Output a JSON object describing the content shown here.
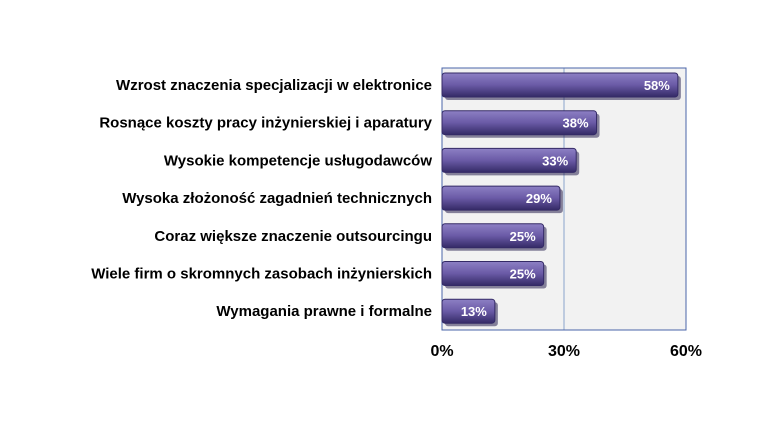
{
  "chart_data": {
    "type": "bar",
    "orientation": "horizontal",
    "categories": [
      "Wzrost znaczenia specjalizacji w elektronice",
      "Rosnące koszty pracy inżynierskiej i aparatury",
      "Wysokie kompetencje usługodawców",
      "Wysoka złożoność zagadnień technicznych",
      "Coraz większe znaczenie outsourcingu",
      "Wiele firm o skromnych zasobach inżynierskich",
      "Wymagania prawne i formalne"
    ],
    "values": [
      58,
      38,
      33,
      29,
      25,
      25,
      13
    ],
    "data_labels": [
      "58%",
      "38%",
      "33%",
      "29%",
      "25%",
      "25%",
      "13%"
    ],
    "xlim": [
      0,
      60
    ],
    "x_ticks": [
      0,
      30,
      60
    ],
    "x_tick_labels": [
      "0%",
      "30%",
      "60%"
    ],
    "grid": "vertical",
    "legend": "none",
    "colors": {
      "bar": "#6a5aa6",
      "bar_light": "#8d80c4",
      "bar_dark": "#342a66",
      "plot_bg": "#f2f2f2",
      "grid": "#8aa4cc",
      "plot_border": "#4a64a8",
      "label": "#000000",
      "value_label": "#ffffff"
    }
  }
}
